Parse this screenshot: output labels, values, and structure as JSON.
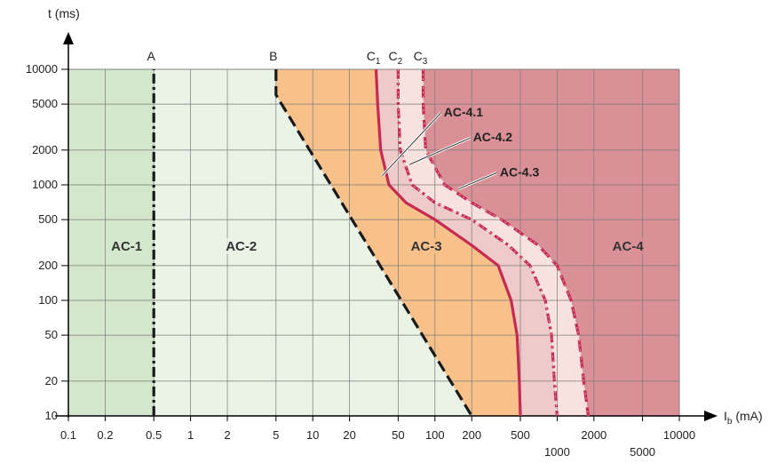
{
  "chart_data": {
    "type": "line",
    "title": "",
    "x_axis": {
      "label": "I",
      "label_sub": "b",
      "label_unit": " (mA)",
      "scale": "log",
      "range": [
        0.1,
        10000
      ],
      "ticks": [
        {
          "value": 0.1,
          "label": "0.1",
          "row": 1
        },
        {
          "value": 0.2,
          "label": "0.2",
          "row": 1
        },
        {
          "value": 0.5,
          "label": "0.5",
          "row": 1
        },
        {
          "value": 1,
          "label": "1",
          "row": 1
        },
        {
          "value": 2,
          "label": "2",
          "row": 1
        },
        {
          "value": 5,
          "label": "5",
          "row": 1
        },
        {
          "value": 10,
          "label": "10",
          "row": 1
        },
        {
          "value": 20,
          "label": "20",
          "row": 1
        },
        {
          "value": 50,
          "label": "50",
          "row": 1
        },
        {
          "value": 100,
          "label": "100",
          "row": 1
        },
        {
          "value": 200,
          "label": "200",
          "row": 1
        },
        {
          "value": 500,
          "label": "500",
          "row": 1
        },
        {
          "value": 1000,
          "label": "1000",
          "row": 2
        },
        {
          "value": 2000,
          "label": "2000",
          "row": 1
        },
        {
          "value": 5000,
          "label": "5000",
          "row": 2
        },
        {
          "value": 10000,
          "label": "10000",
          "row": 1
        }
      ]
    },
    "y_axis": {
      "label": "t (ms)",
      "scale": "log",
      "range": [
        10,
        10000
      ],
      "ticks": [
        {
          "value": 10,
          "label": "10"
        },
        {
          "value": 20,
          "label": "20"
        },
        {
          "value": 50,
          "label": "50"
        },
        {
          "value": 100,
          "label": "100"
        },
        {
          "value": 200,
          "label": "200"
        },
        {
          "value": 500,
          "label": "500"
        },
        {
          "value": 1000,
          "label": "1000"
        },
        {
          "value": 2000,
          "label": "2000"
        },
        {
          "value": 5000,
          "label": "5000"
        },
        {
          "value": 10000,
          "label": "10000"
        }
      ]
    },
    "grid": true,
    "zones": [
      {
        "label": "AC-1",
        "color": "#d3e7cc",
        "label_at": {
          "x": 0.3,
          "y": 275
        }
      },
      {
        "label": "AC-2",
        "color": "#e9f3e6",
        "label_at": {
          "x": 2.6,
          "y": 275
        }
      },
      {
        "label": "AC-3",
        "color": "#f9c18a",
        "label_at": {
          "x": 85,
          "y": 275
        }
      },
      {
        "label": "AC-4.1",
        "color": "#eecbc9"
      },
      {
        "label": "AC-4.2",
        "color": "#f8e2e0"
      },
      {
        "label": "AC-4.3",
        "color": "#eecbc9"
      },
      {
        "label": "AC-4",
        "color": "#d99096",
        "label_at": {
          "x": 3800,
          "y": 275
        }
      }
    ],
    "series": [
      {
        "name": "A",
        "style": "dashdot",
        "color": "#1a1a1a",
        "points": [
          [
            0.5,
            10
          ],
          [
            0.5,
            10000
          ]
        ]
      },
      {
        "name": "B",
        "style": "dashed",
        "color": "#1a1a1a",
        "points": [
          [
            5,
            10000
          ],
          [
            5,
            6000
          ],
          [
            200,
            10
          ]
        ]
      },
      {
        "name": "C1",
        "label": "C",
        "label_sub": "1",
        "style": "solid",
        "color": "#c62a52",
        "points": [
          [
            33,
            10000
          ],
          [
            34,
            5000
          ],
          [
            36,
            2000
          ],
          [
            42,
            1000
          ],
          [
            58,
            700
          ],
          [
            100,
            500
          ],
          [
            200,
            300
          ],
          [
            330,
            200
          ],
          [
            420,
            100
          ],
          [
            470,
            50
          ],
          [
            490,
            20
          ],
          [
            500,
            10
          ]
        ]
      },
      {
        "name": "C2",
        "label": "C",
        "label_sub": "2",
        "style": "dashdot",
        "color": "#c62a52",
        "points": [
          [
            50,
            10000
          ],
          [
            50,
            5000
          ],
          [
            52,
            2000
          ],
          [
            65,
            1000
          ],
          [
            100,
            700
          ],
          [
            200,
            500
          ],
          [
            400,
            300
          ],
          [
            600,
            200
          ],
          [
            800,
            100
          ],
          [
            900,
            50
          ],
          [
            950,
            20
          ],
          [
            1000,
            10
          ]
        ]
      },
      {
        "name": "C3",
        "label": "C",
        "label_sub": "3",
        "style": "dashed",
        "color": "#c62a52",
        "points": [
          [
            80,
            10000
          ],
          [
            80,
            5000
          ],
          [
            84,
            2000
          ],
          [
            120,
            1000
          ],
          [
            200,
            700
          ],
          [
            350,
            500
          ],
          [
            700,
            300
          ],
          [
            1000,
            200
          ],
          [
            1300,
            100
          ],
          [
            1500,
            50
          ],
          [
            1650,
            20
          ],
          [
            1800,
            10
          ]
        ]
      }
    ],
    "annotations": [
      {
        "text": "AC-4.1",
        "text_at": {
          "x": 118,
          "y": 4200
        },
        "pointer_from": {
          "x": 112,
          "y": 4200
        },
        "pointer_to": {
          "x": 37,
          "y": 1200
        }
      },
      {
        "text": "AC-4.2",
        "text_at": {
          "x": 205,
          "y": 2550
        },
        "pointer_from": {
          "x": 195,
          "y": 2550
        },
        "pointer_to": {
          "x": 62,
          "y": 1500
        }
      },
      {
        "text": "AC-4.3",
        "text_at": {
          "x": 340,
          "y": 1270
        },
        "pointer_from": {
          "x": 320,
          "y": 1270
        },
        "pointer_to": {
          "x": 155,
          "y": 920
        }
      }
    ]
  }
}
